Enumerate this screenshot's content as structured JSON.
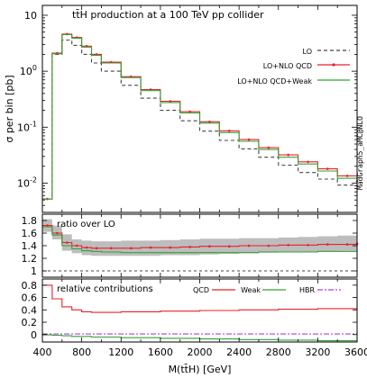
{
  "chart_data": [
    {
      "type": "line",
      "panel": "main",
      "title": "tt̄H production at a 100 TeV pp collider",
      "ylabel": "σ per bin [pb]",
      "yscale": "log",
      "ylim": [
        0.003,
        15
      ],
      "xlim": [
        400,
        3600
      ],
      "legend_position": "top-right",
      "yticks": [
        {
          "v": 10,
          "b": "10",
          "e": ""
        },
        {
          "v": 1,
          "b": "10",
          "e": "0"
        },
        {
          "v": 0.1,
          "b": "10",
          "e": "-1"
        },
        {
          "v": 0.01,
          "b": "10",
          "e": "-2"
        }
      ],
      "x": [
        400,
        500,
        600,
        700,
        800,
        900,
        1000,
        1200,
        1400,
        1600,
        1800,
        2000,
        2200,
        2400,
        2600,
        2800,
        3000,
        3200,
        3400,
        3600
      ],
      "series": [
        {
          "name": "LO",
          "color": "#444444",
          "dash": "4,3",
          "values": [
            0.0052,
            2.0,
            3.6,
            2.9,
            2.0,
            1.4,
            1.0,
            0.56,
            0.33,
            0.2,
            0.13,
            0.085,
            0.058,
            0.041,
            0.029,
            0.021,
            0.0155,
            0.0118,
            0.0092,
            0.0075
          ]
        },
        {
          "name": "LO+NLO QCD",
          "color": "#e8202a",
          "marker": true,
          "values": [
            0.0052,
            2.1,
            4.6,
            4.0,
            2.8,
            2.0,
            1.45,
            0.8,
            0.47,
            0.29,
            0.19,
            0.125,
            0.086,
            0.06,
            0.043,
            0.032,
            0.024,
            0.018,
            0.0135,
            0.0108
          ]
        },
        {
          "name": "LO+NLO QCD+Weak",
          "color": "#33a033",
          "values": [
            0.0052,
            2.05,
            4.5,
            3.9,
            2.7,
            1.93,
            1.4,
            0.77,
            0.45,
            0.275,
            0.18,
            0.118,
            0.08,
            0.056,
            0.04,
            0.029,
            0.022,
            0.0165,
            0.0122,
            0.0098
          ]
        }
      ]
    },
    {
      "type": "line",
      "panel": "ratio",
      "title": "ratio over LO",
      "ylim": [
        0.9,
        1.9
      ],
      "yticks": [
        1,
        1.2,
        1.4,
        1.6,
        1.8
      ],
      "xlim": [
        400,
        3600
      ],
      "x": [
        400,
        500,
        600,
        700,
        800,
        900,
        1000,
        1200,
        1400,
        1600,
        1800,
        2000,
        2200,
        2400,
        2600,
        2800,
        3000,
        3200,
        3400,
        3600
      ],
      "band": {
        "color": "#bdbdbd",
        "low": [
          1.62,
          1.5,
          1.32,
          1.28,
          1.25,
          1.24,
          1.24,
          1.24,
          1.24,
          1.25,
          1.25,
          1.26,
          1.27,
          1.28,
          1.29,
          1.3,
          1.3,
          1.31,
          1.32,
          1.33
        ],
        "high": [
          1.82,
          1.72,
          1.58,
          1.5,
          1.48,
          1.47,
          1.47,
          1.48,
          1.48,
          1.49,
          1.5,
          1.51,
          1.51,
          1.52,
          1.52,
          1.53,
          1.54,
          1.55,
          1.56,
          1.56
        ]
      },
      "series": [
        {
          "name": "LO+NLO QCD",
          "color": "#e8202a",
          "marker": true,
          "values": [
            1.72,
            1.6,
            1.45,
            1.4,
            1.37,
            1.36,
            1.36,
            1.36,
            1.37,
            1.37,
            1.38,
            1.39,
            1.39,
            1.4,
            1.4,
            1.41,
            1.41,
            1.42,
            1.42,
            1.43
          ]
        },
        {
          "name": "LO+NLO QCD+Weak",
          "color": "#33a033",
          "values": [
            1.7,
            1.57,
            1.4,
            1.35,
            1.32,
            1.31,
            1.3,
            1.29,
            1.29,
            1.29,
            1.29,
            1.29,
            1.29,
            1.29,
            1.3,
            1.3,
            1.3,
            1.31,
            1.31,
            1.31
          ]
        },
        {
          "name": "LO",
          "color": "#444444",
          "dash": "3,3",
          "values": [
            1,
            1,
            1,
            1,
            1,
            1,
            1,
            1,
            1,
            1,
            1,
            1,
            1,
            1,
            1,
            1,
            1,
            1,
            1,
            1
          ]
        }
      ]
    },
    {
      "type": "line",
      "panel": "contrib",
      "title": "relative contributions",
      "ylim": [
        -0.12,
        0.9
      ],
      "yticks": [
        0,
        0.2,
        0.4,
        0.6,
        0.8
      ],
      "yticklabels": [
        "0",
        "0.2",
        "0.4",
        "0.6",
        "0.8"
      ],
      "xlim": [
        400,
        3600
      ],
      "xticks": [
        400,
        800,
        1200,
        1600,
        2000,
        2400,
        2800,
        3200,
        3600
      ],
      "xlabel": "M(tt̄H) [GeV]",
      "x": [
        400,
        500,
        600,
        700,
        800,
        900,
        1000,
        1200,
        1400,
        1600,
        1800,
        2000,
        2200,
        2400,
        2600,
        2800,
        3000,
        3200,
        3400,
        3600
      ],
      "series": [
        {
          "name": "QCD",
          "color": "#e8202a",
          "values": [
            0.8,
            0.58,
            0.45,
            0.4,
            0.37,
            0.36,
            0.36,
            0.37,
            0.37,
            0.38,
            0.38,
            0.39,
            0.39,
            0.4,
            0.4,
            0.41,
            0.41,
            0.42,
            0.42,
            0.43
          ]
        },
        {
          "name": "Weak",
          "color": "#33a033",
          "values": [
            -0.005,
            -0.01,
            -0.02,
            -0.03,
            -0.03,
            -0.04,
            -0.04,
            -0.05,
            -0.05,
            -0.06,
            -0.06,
            -0.07,
            -0.07,
            -0.08,
            -0.08,
            -0.09,
            -0.09,
            -0.1,
            -0.1,
            -0.11
          ]
        },
        {
          "name": "HBR",
          "color": "#b040d0",
          "dash": "6,2,2,2",
          "values": [
            0.01,
            0.01,
            0.01,
            0.01,
            0.01,
            0.01,
            0.01,
            0.01,
            0.01,
            0.01,
            0.01,
            0.01,
            0.01,
            0.01,
            0.01,
            0.01,
            0.01,
            0.01,
            0.01,
            0.01
          ]
        }
      ]
    }
  ],
  "side_label": "MadGraph5_aMC@NLO"
}
